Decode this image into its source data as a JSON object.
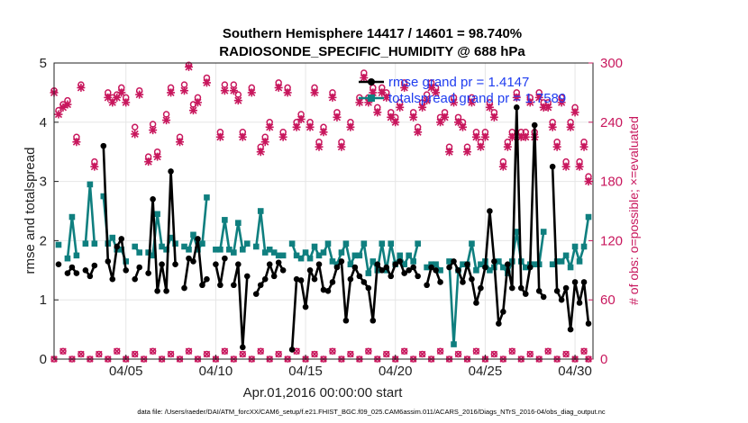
{
  "chart_data": {
    "type": "line",
    "title_line1": "Southern Hemisphere 14417 / 14601 = 98.740%",
    "title_line2": "RADIOSONDE_SPECIFIC_HUMIDITY @ 688 hPa",
    "xlabel": "Apr.01,2016 00:00:00 start",
    "ylabel": "rmse and totalspread",
    "y2label": "# of obs: o=possible; ×=evaluated",
    "footer": "data file: /Users/raeder/DAI/ATM_forcXX/CAM6_setup/f.e21.FHIST_BGC.f09_025.CAM6assim.011/ACARS_2016/Diags_NTrS_2016-04/obs_diag_output.nc",
    "x_tick_labels": [
      "04/05",
      "04/10",
      "04/15",
      "04/20",
      "04/25",
      "04/30"
    ],
    "x_tick_values": [
      5,
      10,
      15,
      20,
      25,
      30
    ],
    "y_tick_labels": [
      "0",
      "1",
      "2",
      "3",
      "4",
      "5"
    ],
    "y2_tick_labels": [
      "0",
      "60",
      "120",
      "180",
      "240",
      "300"
    ],
    "xlim": [
      1,
      31
    ],
    "ylim": [
      0,
      5
    ],
    "y2lim": [
      0,
      300
    ],
    "legend": [
      "rmse grand pr = 1.4147",
      "totalspread grand pr = 1.7589"
    ],
    "colors": {
      "rmse": "#000000",
      "spread": "#0f7f7f",
      "obs": "#c8175d",
      "legend_text": "#1f3df0"
    },
    "rmse": {
      "x": [
        1.25,
        1.5,
        1.75,
        2.0,
        2.25,
        2.5,
        2.75,
        3.0,
        3.25,
        3.5,
        3.75,
        4.0,
        4.25,
        4.5,
        4.75,
        5.0,
        5.25,
        5.5,
        5.75,
        6.0,
        6.25,
        6.5,
        6.75,
        7.0,
        7.25,
        7.5,
        7.75,
        8.0,
        8.25,
        8.5,
        8.75,
        9.0,
        9.25,
        9.5,
        9.75,
        10.0,
        10.25,
        10.5,
        10.75,
        11.0,
        11.25,
        11.5,
        11.75,
        12.0,
        12.25,
        12.5,
        12.75,
        13.0,
        13.25,
        13.5,
        13.75,
        14.0,
        14.25,
        14.5,
        14.75,
        15.0,
        15.25,
        15.5,
        15.75,
        16.0,
        16.25,
        16.5,
        16.75,
        17.0,
        17.25,
        17.5,
        17.75,
        18.0,
        18.25,
        18.5,
        18.75,
        19.0,
        19.25,
        19.5,
        19.75,
        20.0,
        20.25,
        20.5,
        20.75,
        21.0,
        21.25,
        21.5,
        21.75,
        22.0,
        22.25,
        22.5,
        22.75,
        23.0,
        23.25,
        23.5,
        23.75,
        24.0,
        24.25,
        24.5,
        24.75,
        25.0,
        25.25,
        25.5,
        25.75,
        26.0,
        26.25,
        26.5,
        26.75,
        27.0,
        27.25,
        27.5,
        27.75,
        28.0,
        28.25,
        28.5,
        28.75,
        29.0,
        29.25,
        29.5,
        29.75,
        30.0,
        30.25,
        30.5,
        30.75
      ],
      "values": [
        1.6,
        null,
        1.45,
        1.55,
        1.45,
        null,
        1.5,
        1.4,
        1.58,
        null,
        3.6,
        1.65,
        1.35,
        1.9,
        2.03,
        1.5,
        null,
        1.35,
        1.55,
        null,
        1.45,
        2.7,
        1.15,
        1.6,
        1.15,
        3.17,
        1.6,
        null,
        1.2,
        1.7,
        1.65,
        2.03,
        1.25,
        1.35,
        null,
        1.6,
        1.25,
        1.7,
        null,
        1.25,
        1.6,
        0.2,
        1.4,
        null,
        1.1,
        1.25,
        1.35,
        1.6,
        1.4,
        1.63,
        1.5,
        null,
        0.16,
        1.35,
        1.33,
        0.88,
        1.5,
        1.35,
        1.6,
        1.17,
        1.15,
        1.3,
        1.55,
        1.65,
        0.65,
        1.35,
        1.55,
        1.4,
        1.3,
        1.2,
        0.65,
        1.6,
        1.5,
        1.55,
        1.4,
        1.6,
        1.65,
        1.45,
        1.5,
        1.55,
        1.4,
        null,
        1.25,
        1.55,
        1.5,
        1.3,
        null,
        1.55,
        1.65,
        1.5,
        1.3,
        1.6,
        1.35,
        0.95,
        1.2,
        1.55,
        2.5,
        1.65,
        0.6,
        0.8,
        1.6,
        1.2,
        4.25,
        1.2,
        1.1,
        1.55,
        3.95,
        1.15,
        1.05,
        null,
        3.25,
        1.15,
        1.0,
        1.2,
        0.5,
        1.3,
        0.95,
        1.3,
        0.6
      ]
    },
    "totalspread": {
      "x": [
        1.25,
        1.5,
        1.75,
        2.0,
        2.25,
        2.5,
        2.75,
        3.0,
        3.25,
        3.5,
        3.75,
        4.0,
        4.25,
        4.5,
        4.75,
        5.0,
        5.25,
        5.5,
        5.75,
        6.0,
        6.25,
        6.5,
        6.75,
        7.0,
        7.25,
        7.5,
        7.75,
        8.0,
        8.25,
        8.5,
        8.75,
        9.0,
        9.25,
        9.5,
        9.75,
        10.0,
        10.25,
        10.5,
        10.75,
        11.0,
        11.25,
        11.5,
        11.75,
        12.0,
        12.25,
        12.5,
        12.75,
        13.0,
        13.25,
        13.5,
        13.75,
        14.0,
        14.25,
        14.5,
        14.75,
        15.0,
        15.25,
        15.5,
        15.75,
        16.0,
        16.25,
        16.5,
        16.75,
        17.0,
        17.25,
        17.5,
        17.75,
        18.0,
        18.25,
        18.5,
        18.75,
        19.0,
        19.25,
        19.5,
        19.75,
        20.0,
        20.25,
        20.5,
        20.75,
        21.0,
        21.25,
        21.5,
        21.75,
        22.0,
        22.25,
        22.5,
        22.75,
        23.0,
        23.25,
        23.5,
        23.75,
        24.0,
        24.25,
        24.5,
        24.75,
        25.0,
        25.25,
        25.5,
        25.75,
        26.0,
        26.25,
        26.5,
        26.75,
        27.0,
        27.25,
        27.5,
        27.75,
        28.0,
        28.25,
        28.5,
        28.75,
        29.0,
        29.25,
        29.5,
        29.75,
        30.0,
        30.25,
        30.5,
        30.75
      ],
      "values": [
        1.93,
        null,
        1.7,
        2.4,
        1.75,
        null,
        1.95,
        2.95,
        1.95,
        null,
        2.75,
        1.95,
        2.05,
        1.85,
        1.85,
        1.65,
        null,
        1.9,
        1.8,
        null,
        1.8,
        1.75,
        2.45,
        1.9,
        1.85,
        2.05,
        1.95,
        null,
        1.9,
        1.85,
        2.1,
        1.85,
        1.95,
        2.73,
        null,
        1.85,
        1.85,
        2.35,
        1.85,
        1.8,
        2.3,
        1.85,
        1.95,
        null,
        1.9,
        2.5,
        1.8,
        1.85,
        1.8,
        1.75,
        1.75,
        null,
        1.95,
        1.75,
        1.7,
        1.8,
        1.7,
        1.9,
        1.75,
        1.8,
        1.95,
        1.65,
        1.6,
        1.8,
        1.95,
        1.6,
        1.75,
        1.75,
        1.95,
        1.45,
        1.65,
        1.5,
        1.95,
        1.5,
        1.95,
        1.6,
        1.75,
        1.6,
        1.75,
        1.65,
        1.95,
        null,
        1.55,
        1.6,
        1.6,
        1.5,
        null,
        1.65,
        0.25,
        1.5,
        1.6,
        1.6,
        1.95,
        1.5,
        1.6,
        1.65,
        1.5,
        1.55,
        1.65,
        1.55,
        1.45,
        1.65,
        2.15,
        1.65,
        1.55,
        1.6,
        1.6,
        1.6,
        2.15,
        null,
        1.6,
        1.65,
        1.65,
        1.75,
        1.55,
        1.9,
        1.65,
        1.9,
        2.4
      ]
    },
    "obs_possible": {
      "x": [
        1.0,
        1.25,
        1.5,
        1.75,
        2.25,
        2.5,
        3.25,
        4.0,
        4.25,
        4.5,
        4.75,
        5.0,
        5.5,
        5.75,
        6.25,
        6.5,
        6.75,
        7.25,
        7.5,
        8.0,
        8.25,
        8.5,
        8.75,
        9.0,
        9.5,
        10.25,
        10.5,
        11.0,
        11.25,
        11.5,
        12.0,
        12.5,
        12.75,
        13.0,
        13.5,
        13.75,
        14.0,
        14.5,
        14.75,
        15.25,
        15.5,
        15.75,
        16.0,
        16.5,
        16.75,
        17.0,
        17.5,
        18.0,
        18.25,
        18.5,
        18.75,
        19.0,
        19.25,
        19.5,
        19.75,
        20.0,
        20.25,
        20.5,
        21.0,
        21.25,
        21.5,
        21.75,
        22.0,
        22.25,
        22.5,
        22.75,
        23.0,
        23.25,
        23.5,
        23.75,
        24.0,
        24.25,
        24.5,
        24.75,
        25.0,
        25.25,
        25.5,
        26.0,
        26.25,
        26.5,
        26.75,
        27.0,
        27.25,
        27.5,
        27.75,
        28.0,
        28.25,
        28.5,
        28.75,
        29.0,
        29.25,
        29.5,
        29.75,
        30.0,
        30.25,
        30.5,
        30.75
      ],
      "values": [
        272,
        252,
        258,
        262,
        225,
        278,
        200,
        270,
        265,
        268,
        275,
        265,
        235,
        272,
        205,
        238,
        210,
        248,
        275,
        225,
        278,
        298,
        258,
        265,
        285,
        230,
        278,
        278,
        268,
        230,
        275,
        215,
        225,
        240,
        280,
        230,
        275,
        240,
        248,
        240,
        275,
        220,
        235,
        270,
        250,
        220,
        240,
        265,
        290,
        265,
        275,
        255,
        275,
        270,
        250,
        245,
        260,
        280,
        250,
        235,
        260,
        268,
        280,
        275,
        245,
        250,
        215,
        265,
        245,
        240,
        215,
        265,
        230,
        220,
        230,
        260,
        250,
        200,
        220,
        230,
        270,
        230,
        230,
        265,
        230,
        270,
        260,
        260,
        240,
        220,
        265,
        200,
        240,
        255,
        200,
        220,
        185
      ]
    },
    "obs_evaluated": {
      "x": [
        1.0,
        1.25,
        1.5,
        1.75,
        2.25,
        2.5,
        3.25,
        4.0,
        4.25,
        4.5,
        4.75,
        5.0,
        5.5,
        5.75,
        6.25,
        6.5,
        6.75,
        7.25,
        7.5,
        8.0,
        8.25,
        8.5,
        8.75,
        9.0,
        9.5,
        10.25,
        10.5,
        11.0,
        11.25,
        11.5,
        12.0,
        12.5,
        12.75,
        13.0,
        13.5,
        13.75,
        14.0,
        14.5,
        14.75,
        15.25,
        15.5,
        15.75,
        16.0,
        16.5,
        16.75,
        17.0,
        17.5,
        18.0,
        18.25,
        18.5,
        18.75,
        19.0,
        19.25,
        19.5,
        19.75,
        20.0,
        20.25,
        20.5,
        21.0,
        21.25,
        21.5,
        21.75,
        22.0,
        22.25,
        22.5,
        22.75,
        23.0,
        23.25,
        23.5,
        23.75,
        24.0,
        24.25,
        24.5,
        24.75,
        25.0,
        25.25,
        25.5,
        26.0,
        26.25,
        26.5,
        26.75,
        27.0,
        27.25,
        27.5,
        27.75,
        28.0,
        28.25,
        28.5,
        28.75,
        29.0,
        29.25,
        29.5,
        29.75,
        30.0,
        30.25,
        30.5,
        30.75
      ],
      "values": [
        270,
        248,
        255,
        258,
        220,
        275,
        195,
        265,
        260,
        265,
        270,
        260,
        228,
        268,
        200,
        232,
        205,
        242,
        270,
        220,
        272,
        296,
        252,
        260,
        280,
        225,
        272,
        272,
        262,
        225,
        270,
        210,
        220,
        235,
        275,
        225,
        270,
        235,
        243,
        235,
        270,
        215,
        230,
        265,
        245,
        215,
        235,
        260,
        285,
        260,
        270,
        250,
        270,
        265,
        245,
        240,
        255,
        275,
        245,
        230,
        255,
        262,
        275,
        270,
        240,
        245,
        210,
        260,
        240,
        235,
        210,
        260,
        225,
        215,
        225,
        255,
        245,
        195,
        215,
        225,
        265,
        225,
        225,
        260,
        225,
        265,
        255,
        255,
        235,
        215,
        260,
        195,
        235,
        250,
        195,
        215,
        180
      ]
    },
    "obs_zero_line": {
      "x": [
        1.0,
        1.5,
        2.0,
        2.5,
        3.0,
        3.5,
        4.0,
        4.5,
        5.0,
        5.5,
        6.0,
        6.5,
        7.0,
        7.5,
        8.0,
        8.5,
        9.0,
        9.5,
        10.0,
        10.5,
        11.0,
        11.5,
        12.0,
        12.5,
        13.0,
        13.5,
        14.0,
        14.5,
        15.0,
        15.5,
        16.0,
        16.5,
        17.0,
        17.5,
        18.0,
        18.5,
        19.0,
        19.5,
        20.0,
        20.5,
        21.0,
        21.5,
        22.0,
        22.5,
        23.0,
        23.5,
        24.0,
        24.5,
        25.0,
        25.5,
        26.0,
        26.5,
        27.0,
        27.5,
        28.0,
        28.5,
        29.0,
        29.5,
        30.0,
        30.5,
        30.75
      ],
      "values": [
        0,
        8,
        0,
        5,
        0,
        5,
        0,
        8,
        0,
        5,
        0,
        8,
        0,
        5,
        0,
        8,
        0,
        5,
        0,
        8,
        0,
        5,
        0,
        8,
        0,
        5,
        0,
        8,
        0,
        5,
        0,
        8,
        0,
        5,
        0,
        8,
        0,
        5,
        0,
        8,
        0,
        5,
        0,
        8,
        0,
        5,
        0,
        8,
        0,
        5,
        0,
        8,
        0,
        5,
        0,
        8,
        0,
        5,
        0,
        8,
        0
      ]
    }
  }
}
